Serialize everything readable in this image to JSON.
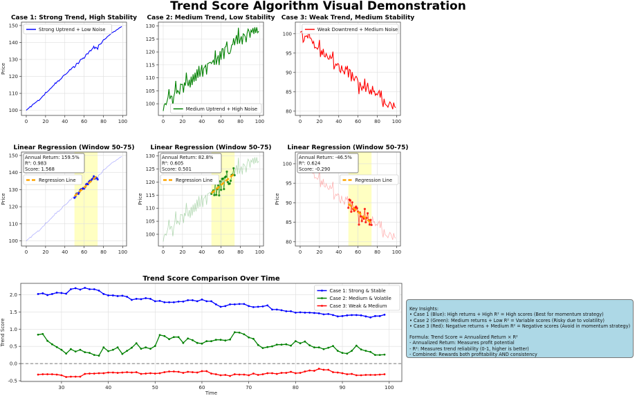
{
  "figure_title": "Trend Score Algorithm Visual Demonstration",
  "colors": {
    "case1": "#0000ff",
    "case2": "#008000",
    "case3": "#ff0000",
    "regression": "#ffa500",
    "window_shade": "#ffff99",
    "insights_bg": "#add8e6"
  },
  "chart_data": [
    {
      "type": "line",
      "title": "Case 1: Strong Trend, High Stability",
      "ylabel": "Price",
      "xlim": [
        -5,
        104
      ],
      "ylim": [
        97,
        152
      ],
      "xticks": [
        0,
        20,
        40,
        60,
        80,
        100
      ],
      "yticks": [
        100,
        110,
        120,
        130,
        140,
        150
      ],
      "grid": true,
      "legend": "upper left",
      "series": [
        {
          "name": "Strong Uptrend + Low Noise",
          "color": "#0000ff",
          "x_start": 0,
          "values": [
            100.0,
            100.6,
            101.0,
            101.6,
            102.2,
            102.0,
            102.9,
            103.6,
            103.9,
            104.3,
            104.8,
            105.2,
            105.9,
            105.7,
            106.3,
            107.0,
            107.6,
            108.4,
            108.7,
            109.3,
            110.6,
            110.5,
            111.0,
            111.5,
            112.1,
            112.8,
            113.2,
            113.9,
            114.5,
            115.0,
            116.2,
            116.0,
            116.9,
            117.4,
            117.3,
            118.1,
            118.5,
            119.2,
            120.2,
            120.7,
            121.0,
            121.3,
            121.7,
            122.4,
            123.0,
            124.0,
            123.9,
            124.7,
            125.3,
            125.8,
            125.2,
            126.0,
            127.6,
            127.8,
            127.5,
            128.5,
            129.8,
            130.2,
            130.3,
            130.9,
            130.6,
            131.5,
            133.0,
            133.4,
            133.2,
            134.5,
            135.2,
            135.0,
            136.0,
            136.5,
            137.8,
            136.4,
            137.2,
            136.8,
            136.0,
            138.5,
            138.9,
            139.1,
            139.5,
            140.6,
            141.6,
            141.7,
            142.2,
            142.6,
            143.4,
            143.8,
            144.2,
            144.7,
            145.3,
            145.8,
            146.0,
            146.5,
            146.6,
            147.1,
            147.6,
            147.8,
            148.3,
            148.8,
            149.0,
            149.5
          ]
        }
      ]
    },
    {
      "type": "line",
      "title": "Case 2: Medium Trend, Low Stability",
      "xlim": [
        -5,
        104
      ],
      "ylim": [
        95.5,
        131.5
      ],
      "xticks": [
        0,
        20,
        40,
        60,
        80,
        100
      ],
      "yticks": [
        100,
        105,
        110,
        115,
        120,
        125,
        130
      ],
      "grid": true,
      "legend": "lower right",
      "series": [
        {
          "name": "Medium Uptrend + High Noise",
          "color": "#008000",
          "x_start": 0,
          "values": [
            97.2,
            99.5,
            100.1,
            99.6,
            101.0,
            102.5,
            105.6,
            101.8,
            103.0,
            102.9,
            99.2,
            102.7,
            104.4,
            108.8,
            103.9,
            105.1,
            104.6,
            103.6,
            107.6,
            107.4,
            107.5,
            104.3,
            108.2,
            107.0,
            112.0,
            108.3,
            106.8,
            109.3,
            106.3,
            110.5,
            107.2,
            111.4,
            108.5,
            112.0,
            108.8,
            113.3,
            110.0,
            114.6,
            110.4,
            112.6,
            115.0,
            110.4,
            113.6,
            114.2,
            114.9,
            111.3,
            115.5,
            115.6,
            115.9,
            116.0,
            115.5,
            116.2,
            116.8,
            115.0,
            120.6,
            115.1,
            117.3,
            118.7,
            114.9,
            120.3,
            117.0,
            121.2,
            121.3,
            117.3,
            121.8,
            122.1,
            124.0,
            120.0,
            119.3,
            119.4,
            120.5,
            122.7,
            122.8,
            125.3,
            122.6,
            124.8,
            126.5,
            123.0,
            129.3,
            123.2,
            124.8,
            126.0,
            122.9,
            127.0,
            126.7,
            125.9,
            123.7,
            127.2,
            128.8,
            128.0,
            125.5,
            128.4,
            127.6,
            129.2,
            126.9,
            129.5,
            127.3,
            129.5,
            127.4,
            128.0
          ]
        }
      ]
    },
    {
      "type": "line",
      "title": "Case 3: Weak Trend, Medium Stability",
      "xlim": [
        -5,
        104
      ],
      "ylim": [
        78.9,
        103
      ],
      "xticks": [
        0,
        20,
        40,
        60,
        80,
        100
      ],
      "yticks": [
        80,
        85,
        90,
        95,
        100
      ],
      "grid": true,
      "legend": "upper right",
      "series": [
        {
          "name": "Weak Downtrend + Medium Noise",
          "color": "#ff0000",
          "x_start": 0,
          "values": [
            100.4,
            100.5,
            100.7,
            97.8,
            98.2,
            99.4,
            99.3,
            99.5,
            98.8,
            101.8,
            98.9,
            98.9,
            98.4,
            97.5,
            98.0,
            96.3,
            96.5,
            96.3,
            96.0,
            96.6,
            98.4,
            94.0,
            95.7,
            94.5,
            96.1,
            94.2,
            94.0,
            94.9,
            94.2,
            93.5,
            93.4,
            94.4,
            93.6,
            93.9,
            95.4,
            90.8,
            91.6,
            92.2,
            91.8,
            92.3,
            92.1,
            90.4,
            90.0,
            91.8,
            90.5,
            90.3,
            89.5,
            91.4,
            90.8,
            91.7,
            88.7,
            90.8,
            90.6,
            87.7,
            90.1,
            88.4,
            87.9,
            88.7,
            89.0,
            88.6,
            87.7,
            84.4,
            87.5,
            86.5,
            85.3,
            86.4,
            85.9,
            88.4,
            85.0,
            86.1,
            87.3,
            85.5,
            84.4,
            85.6,
            84.3,
            86.5,
            85.0,
            85.2,
            84.1,
            84.5,
            84.2,
            84.8,
            85.3,
            83.5,
            85.3,
            82.5,
            81.1,
            83.2,
            81.9,
            81.6,
            81.4,
            81.0,
            81.8,
            82.4,
            82.0,
            81.3,
            80.5,
            82.2,
            81.2,
            80.9
          ]
        }
      ]
    },
    {
      "type": "line",
      "source_case": 0,
      "title": "Linear Regression (Window 50-75)",
      "ylabel": "Price",
      "xlim": [
        -5,
        104
      ],
      "ylim": [
        97,
        152
      ],
      "xticks": [
        0,
        20,
        40,
        60,
        80,
        100
      ],
      "yticks": [
        100,
        110,
        120,
        130,
        140,
        150
      ],
      "window": [
        50,
        75
      ],
      "legend": "upper left",
      "legend_label": "Regression Line",
      "annotation": [
        "Annual Return: 159.5%",
        "R²: 0.983",
        "Score: 1.568"
      ]
    },
    {
      "type": "line",
      "source_case": 1,
      "title": "Linear Regression (Window 50-75)",
      "ylabel": "Price",
      "xlim": [
        -5,
        104
      ],
      "ylim": [
        95.5,
        131.5
      ],
      "xticks": [
        0,
        20,
        40,
        60,
        80,
        100
      ],
      "yticks": [
        100,
        105,
        110,
        115,
        120,
        125,
        130
      ],
      "window": [
        50,
        75
      ],
      "legend": "upper left",
      "legend_label": "Regression Line",
      "annotation": [
        "Annual Return: 82.8%",
        "R²: 0.605",
        "Score: 0.501"
      ]
    },
    {
      "type": "line",
      "source_case": 2,
      "title": "Linear Regression (Window 50-75)",
      "ylabel": "Price",
      "xlim": [
        -5,
        104
      ],
      "ylim": [
        78.9,
        103
      ],
      "xticks": [
        0,
        20,
        40,
        60,
        80,
        100
      ],
      "yticks": [
        80,
        85,
        90,
        95,
        100
      ],
      "window": [
        50,
        75
      ],
      "legend": "upper right",
      "legend_label": "Regression Line",
      "annotation": [
        "Annual Return: -46.5%",
        "R²: 0.624",
        "Score: -0.290"
      ]
    },
    {
      "type": "line",
      "title": "Trend Score Comparison Over Time",
      "xlabel": "Time",
      "ylabel": "Trend Score",
      "xlim": [
        21.3,
        102.7
      ],
      "ylim": [
        -0.52,
        2.33
      ],
      "xticks": [
        30,
        40,
        50,
        60,
        70,
        80,
        90,
        100
      ],
      "yticks": [
        -0.5,
        0.0,
        0.5,
        1.0,
        1.5,
        2.0
      ],
      "grid": true,
      "legend": "upper right",
      "reference_line": 0,
      "series": [
        {
          "name": "Case 1: Strong & Stable",
          "color": "#0000ff",
          "x_start": 25,
          "values": [
            2.02,
            2.04,
            1.99,
            2.02,
            2.06,
            2.05,
            2.03,
            2.16,
            2.19,
            2.15,
            2.2,
            2.16,
            2.16,
            2.12,
            2.02,
            1.98,
            1.98,
            1.96,
            1.97,
            1.94,
            1.85,
            1.88,
            1.87,
            1.9,
            1.88,
            1.81,
            1.82,
            1.78,
            1.78,
            1.78,
            1.8,
            1.8,
            1.84,
            1.84,
            1.81,
            1.86,
            1.81,
            1.81,
            1.72,
            1.65,
            1.67,
            1.72,
            1.72,
            1.73,
            1.73,
            1.67,
            1.64,
            1.65,
            1.66,
            1.69,
            1.57,
            1.57,
            1.55,
            1.52,
            1.52,
            1.48,
            1.49,
            1.48,
            1.48,
            1.47,
            1.46,
            1.43,
            1.44,
            1.41,
            1.37,
            1.38,
            1.4,
            1.41,
            1.41,
            1.4,
            1.37,
            1.34,
            1.38,
            1.38,
            1.42
          ]
        },
        {
          "name": "Case 2: Medium & Volatile",
          "color": "#008000",
          "x_start": 25,
          "values": [
            0.84,
            0.86,
            0.66,
            0.56,
            0.48,
            0.4,
            0.29,
            0.42,
            0.35,
            0.4,
            0.33,
            0.31,
            0.25,
            0.23,
            0.47,
            0.36,
            0.4,
            0.47,
            0.28,
            0.37,
            0.46,
            0.59,
            0.43,
            0.47,
            0.43,
            0.51,
            0.83,
            0.8,
            0.71,
            0.77,
            0.77,
            0.6,
            0.73,
            0.68,
            0.6,
            0.58,
            0.65,
            0.65,
            0.69,
            0.69,
            0.67,
            0.7,
            0.91,
            0.9,
            0.85,
            0.76,
            0.72,
            0.54,
            0.45,
            0.48,
            0.5,
            0.55,
            0.55,
            0.56,
            0.52,
            0.65,
            0.59,
            0.64,
            0.53,
            0.47,
            0.47,
            0.42,
            0.46,
            0.51,
            0.37,
            0.31,
            0.29,
            0.37,
            0.52,
            0.41,
            0.37,
            0.34,
            0.25,
            0.25,
            0.26
          ]
        },
        {
          "name": "Case 3: Weak & Medium",
          "color": "#ff0000",
          "x_start": 25,
          "values": [
            -0.32,
            -0.31,
            -0.31,
            -0.31,
            -0.32,
            -0.34,
            -0.39,
            -0.38,
            -0.38,
            -0.38,
            -0.3,
            -0.29,
            -0.29,
            -0.28,
            -0.28,
            -0.26,
            -0.26,
            -0.27,
            -0.26,
            -0.25,
            -0.26,
            -0.25,
            -0.3,
            -0.29,
            -0.28,
            -0.29,
            -0.28,
            -0.25,
            -0.23,
            -0.23,
            -0.24,
            -0.27,
            -0.24,
            -0.25,
            -0.26,
            -0.22,
            -0.22,
            -0.29,
            -0.31,
            -0.34,
            -0.33,
            -0.36,
            -0.31,
            -0.32,
            -0.32,
            -0.34,
            -0.29,
            -0.33,
            -0.31,
            -0.28,
            -0.28,
            -0.3,
            -0.27,
            -0.27,
            -0.24,
            -0.28,
            -0.27,
            -0.23,
            -0.2,
            -0.21,
            -0.15,
            -0.18,
            -0.18,
            -0.25,
            -0.26,
            -0.28,
            -0.31,
            -0.3,
            -0.34,
            -0.34,
            -0.33,
            -0.33,
            -0.33,
            -0.32,
            -0.31
          ]
        }
      ]
    }
  ],
  "insights": {
    "heading": "Key Insights:",
    "bullets": [
      "• Case 1 (Blue): High returns + High R² = High scores (Best for momentum strategy)",
      "• Case 2 (Green): Medium returns + Low R² = Variable scores (Risky due to volatility)",
      "• Case 3 (Red): Negative returns + Medium R² = Negative scores (Avoid in momentum strategy)"
    ],
    "formula": "Formula: Trend Score = Annualized Return × R²",
    "notes": [
      "- Annualized Return: Measures profit potential",
      "- R²: Measures trend reliability (0-1, higher is better)",
      "- Combined: Rewards both profitability AND consistency"
    ]
  }
}
